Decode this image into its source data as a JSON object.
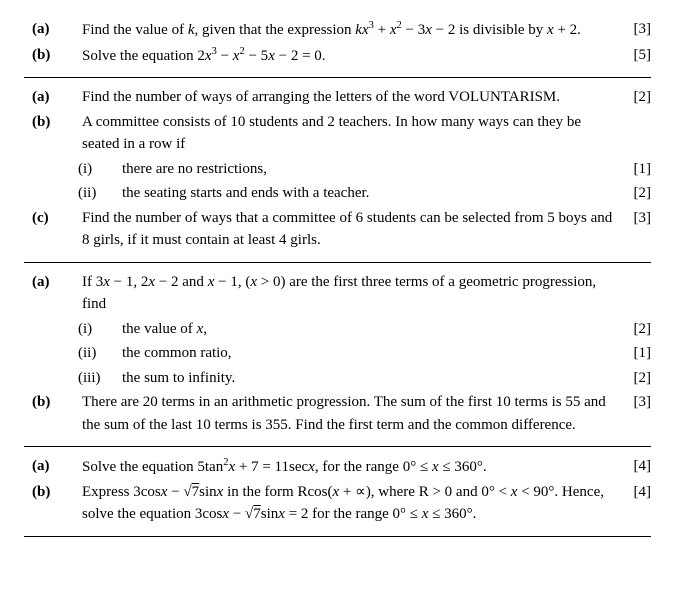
{
  "q1": {
    "a": {
      "label": "(a)",
      "text": "Find the value of <span class='ital'>k</span>, given that the expression <span class='ital'>kx</span><span class='sup'>3</span> + <span class='ital'>x</span><span class='sup'>2</span> − 3<span class='ital'>x</span> − 2 is divisible by <span class='ital'>x</span> + 2.",
      "marks": "[3]"
    },
    "b": {
      "label": "(b)",
      "text": "Solve the equation 2<span class='ital'>x</span><span class='sup'>3</span> − <span class='ital'>x</span><span class='sup'>2</span> − 5<span class='ital'>x</span> − 2 = 0.",
      "marks": "[5]"
    }
  },
  "q2": {
    "a": {
      "label": "(a)",
      "text": "Find the number of ways of arranging the letters of the word VOLUNTARISM.",
      "marks": "[2]"
    },
    "b": {
      "label": "(b)",
      "text": "A committee consists of 10 students and 2 teachers. In how many ways can they be seated in a row if",
      "i": {
        "label": "(i)",
        "text": "there are no restrictions,",
        "marks": "[1]"
      },
      "ii": {
        "label": "(ii)",
        "text": "the seating starts and ends with a teacher.",
        "marks": "[2]"
      }
    },
    "c": {
      "label": "(c)",
      "text": "Find the number of ways that a committee of 6 students can be selected from 5 boys and 8 girls, if it must contain at least 4 girls.",
      "marks": "[3]"
    }
  },
  "q3": {
    "a": {
      "label": "(a)",
      "text": "If 3<span class='ital'>x</span> − 1, 2<span class='ital'>x</span> − 2 and <span class='ital'>x</span> − 1, (<span class='ital'>x</span> &gt; 0) are the first three terms of a geometric progression, find",
      "i": {
        "label": "(i)",
        "text": "the value of <span class='ital'>x</span>,",
        "marks": "[2]"
      },
      "ii": {
        "label": "(ii)",
        "text": "the common ratio,",
        "marks": "[1]"
      },
      "iii": {
        "label": "(iii)",
        "text": "the sum to infinity.",
        "marks": "[2]"
      }
    },
    "b": {
      "label": "(b)",
      "text": "There are 20 terms in an arithmetic progression. The sum of the first 10 terms is 55 and the sum of the last 10 terms is 355. Find the first term and the common difference.",
      "marks": "[3]"
    }
  },
  "q4": {
    "a": {
      "label": "(a)",
      "text": "Solve the equation 5tan<span class='sup'>2</span><span class='ital'>x</span> + 7 = 11sec<span class='ital'>x</span>, for the range 0° ≤ <span class='ital'>x</span> ≤ 360°.",
      "marks": "[4]"
    },
    "b": {
      "label": "(b)",
      "text": "Express 3cos<span class='ital'>x</span> − √<span class='sqrt'>7</span>sin<span class='ital'>x</span> in the form Rcos(<span class='ital'>x</span> + ∝), where R &gt; 0 and 0° &lt; <span class='ital'>x</span> &lt; 90°. Hence, solve the equation 3cos<span class='ital'>x</span> − √<span class='sqrt'>7</span>sin<span class='ital'>x</span> = 2 for the range 0° ≤ <span class='ital'>x</span> ≤ 360°.",
      "marks": "[4]"
    }
  }
}
